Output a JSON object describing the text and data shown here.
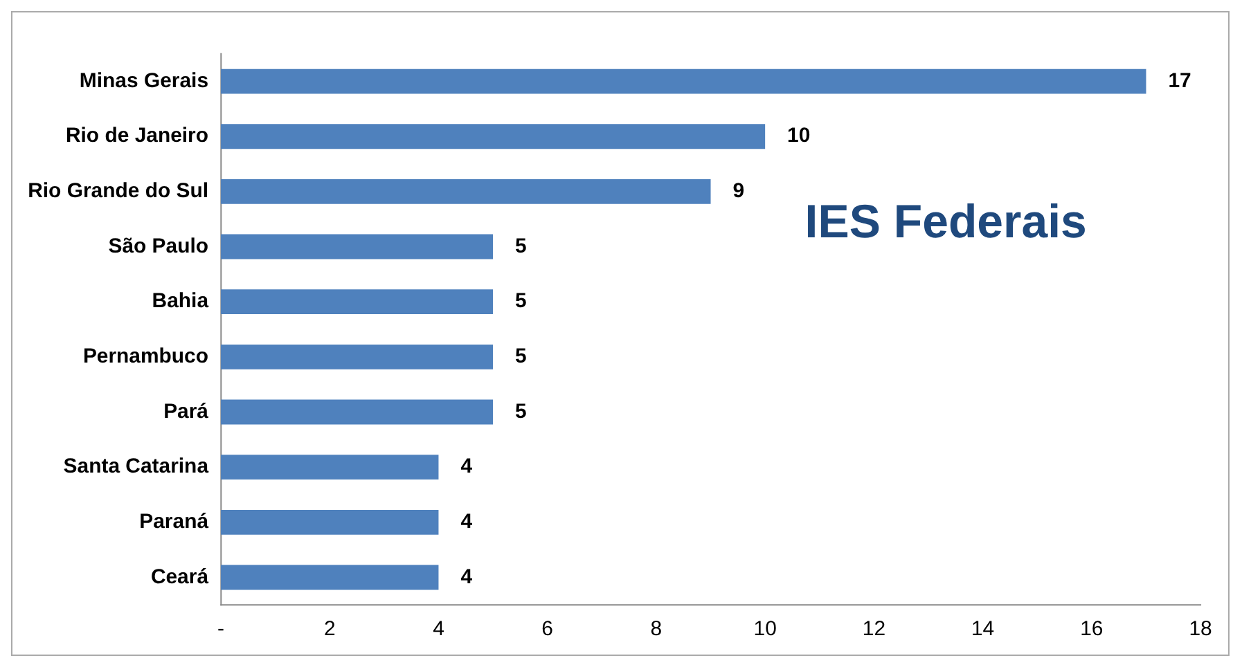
{
  "chart_data": {
    "type": "bar",
    "orientation": "horizontal",
    "title": "IES Federais",
    "categories": [
      "Minas Gerais",
      "Rio de Janeiro",
      "Rio Grande do Sul",
      "São Paulo",
      "Bahia",
      "Pernambuco",
      "Pará",
      "Santa Catarina",
      "Paraná",
      "Ceará"
    ],
    "values": [
      17,
      10,
      9,
      5,
      5,
      5,
      5,
      4,
      4,
      4
    ],
    "color": "#4f81bd",
    "xlim": [
      0,
      18
    ],
    "xticks": [
      {
        "value": 0,
        "label": "-"
      },
      2,
      4,
      6,
      8,
      10,
      12,
      14,
      16,
      18
    ],
    "data_labels": true,
    "grid": false,
    "legend": false
  }
}
